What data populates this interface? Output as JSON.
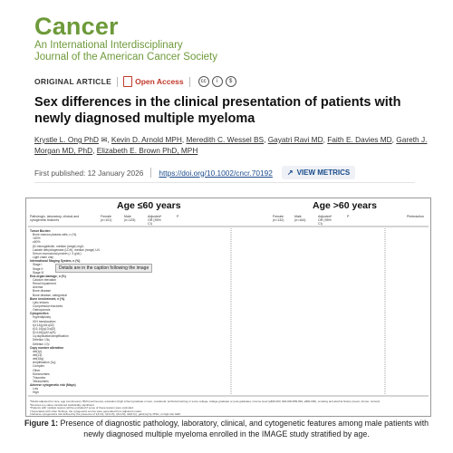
{
  "journal": {
    "name": "Cancer",
    "subtitle_line1": "An International Interdisciplinary",
    "subtitle_line2": "Journal of the American Cancer Society"
  },
  "meta": {
    "article_type": "ORIGINAL ARTICLE",
    "access_label": "Open Access",
    "license_icons": [
      "cc-icon",
      "by-icon",
      "nc-icon"
    ]
  },
  "article": {
    "title": "Sex differences in the clinical presentation of patients with newly diagnosed multiple myeloma",
    "authors": [
      "Krystle L. Ong PhD",
      "Kevin D. Arnold MPH",
      "Meredith C. Wessel BS",
      "Gayatri Ravi MD",
      "Faith E. Davies MD",
      "Gareth J. Morgan MD, PhD",
      "Elizabeth E. Brown PhD, MPH"
    ],
    "first_published_label": "First published: 12 January 2026",
    "doi": "https://doi.org/10.1002/cncr.70192",
    "view_metrics_label": "VIEW METRICS"
  },
  "figure": {
    "left_group": "Age ≤60 years",
    "right_group": "Age >60 years",
    "col_headers_left": [
      "Pathologic, laboratory, clinical and cytogenetic features",
      "Female (n=101)",
      "Male (n=125)",
      "Adjusted* OR (95% CI)",
      "P"
    ],
    "col_headers_right": [
      "Female (n=132)",
      "Male (n=164)",
      "Adjusted* OR (95% CI)",
      "P",
      "Pinteraction"
    ],
    "tooltip": "Details are in the caption following the image",
    "rows": [
      {
        "label": "Tumor Burden",
        "section": true
      },
      {
        "label": "Bone marrow plasma cells, n (%)",
        "section": false
      },
      {
        "label": "<60%",
        "section": false
      },
      {
        "label": "≥60%",
        "section": false
      },
      {
        "label": "β2-microglobulin, median (range) mg/L",
        "section": false
      },
      {
        "label": "Lactate dehydrogenase (LDH), median (range) U/L",
        "section": false
      },
      {
        "label": "Serum monoclonal protein (> 3 g/dL)",
        "section": false
      },
      {
        "label": "Light chain only",
        "section": false
      },
      {
        "label": "International Staging System, n (%)",
        "section": true
      },
      {
        "label": "Stage I",
        "section": false
      },
      {
        "label": "Stage II",
        "section": false
      },
      {
        "label": "Stage III",
        "section": false
      },
      {
        "label": "End-organ damage, n (%)",
        "section": true
      },
      {
        "label": "Calcium elevation",
        "section": false
      },
      {
        "label": "Renal impairment",
        "section": false
      },
      {
        "label": "Anemia",
        "section": false
      },
      {
        "label": "Bone disease",
        "section": false
      },
      {
        "label": "Bone disease, categorical",
        "section": false
      },
      {
        "label": "Bone involvement, n (%)",
        "section": true
      },
      {
        "label": "Lytic lesions",
        "section": false
      },
      {
        "label": "Compression fractures",
        "section": false
      },
      {
        "label": "Osteoporosis",
        "section": false
      },
      {
        "label": "Cytogenetics",
        "section": true
      },
      {
        "label": "Hyperdiploidy",
        "section": false
      },
      {
        "label": "IGH translocation",
        "section": false
      },
      {
        "label": "t(4;14)(p16;q32)",
        "section": false
      },
      {
        "label": "t(11;14)(q13;q32)",
        "section": false
      },
      {
        "label": "t(14;16)(q32;q23)",
        "section": false
      },
      {
        "label": "1q duplication/amplification",
        "section": false
      },
      {
        "label": "Deletion 13q",
        "section": false
      },
      {
        "label": "Deletion 17p",
        "section": false
      },
      {
        "label": "Copy number alteration",
        "section": true
      },
      {
        "label": "del(1p)",
        "section": false
      },
      {
        "label": "del(13)",
        "section": false
      },
      {
        "label": "del(16q)",
        "section": false
      },
      {
        "label": "Amplification (1q)",
        "section": false
      },
      {
        "label": "Complex",
        "section": false
      },
      {
        "label": "Other",
        "section": false
      },
      {
        "label": "Monosomies",
        "section": false
      },
      {
        "label": "Trisomies",
        "section": false
      },
      {
        "label": "Tetrasomies",
        "section": false
      },
      {
        "label": "Adverse cytogenetic risk (Mayo)",
        "section": true
      },
      {
        "label": "Low",
        "section": false
      },
      {
        "label": "High",
        "section": false
      }
    ],
    "footnotes": [
      "*Model adjusted for race, age (continuous), BMI (continuous), education (high school graduate or less, vocational, technical training or some college, college graduate or post-graduate), income level (≤$30,000, $30,000-$59,999, ≥$60,000), smoking and alcohol history (never, former, current).",
      "*Denotes a p-value considered statistically significant.",
      "*Patients with multiple lesions will be excluded if some of these lesions were excluded.",
      "†Associated with other findings, the cytogenetic scores were generated from adjusted model.",
      "‡Adverse cytogenetics risk defined by the presence of t(4;14), t(14;16), t(14;20), del(17p), gain(1q) by FISH, or high-risk GEP."
    ]
  },
  "caption": {
    "label": "Figure 1:",
    "text": " Presence of diagnostic pathology, laboratory, clinical, and cytogenetic features among male patients with newly diagnosed multiple myeloma enrolled in the IMAGE study stratified by age."
  },
  "colors": {
    "journal_green": "#6e9a3a",
    "link_blue": "#1a4b8c",
    "open_access_red": "#c0392b"
  }
}
